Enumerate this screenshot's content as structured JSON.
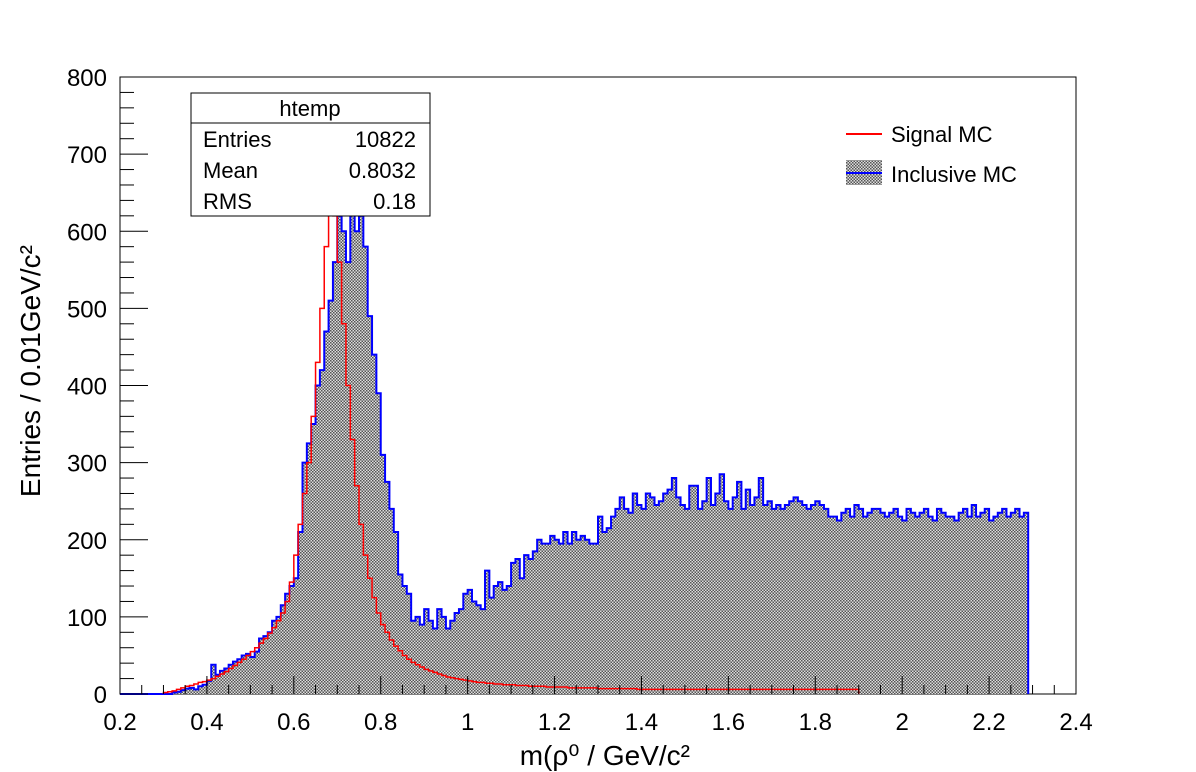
{
  "chart_data": {
    "type": "histogram",
    "xlabel": "m(ρ⁰ / GeV/c²",
    "ylabel": "Entries / 0.01GeV/c²",
    "xlim": [
      0.2,
      2.4
    ],
    "ylim": [
      0,
      800
    ],
    "bin_width": 0.01,
    "x_ticks": [
      "0.2",
      "0.4",
      "0.6",
      "0.8",
      "1",
      "1.2",
      "1.4",
      "1.6",
      "1.8",
      "2",
      "2.2",
      "2.4"
    ],
    "y_ticks": [
      "0",
      "100",
      "200",
      "300",
      "400",
      "500",
      "600",
      "700",
      "800"
    ],
    "stats_box": {
      "title": "htemp",
      "rows": [
        {
          "label": "Entries",
          "value": "10822"
        },
        {
          "label": "Mean",
          "value": "0.8032"
        },
        {
          "label": "RMS",
          "value": "0.18"
        }
      ]
    },
    "legend_position": "top-right",
    "series": [
      {
        "name": "Signal MC",
        "color": "#ff0000",
        "style": "line",
        "x_start": 0.3,
        "step": 0.01,
        "values": [
          2,
          3,
          4,
          6,
          8,
          10,
          11,
          13,
          15,
          16,
          18,
          20,
          23,
          26,
          29,
          33,
          37,
          41,
          45,
          50,
          55,
          60,
          66,
          72,
          79,
          86,
          95,
          105,
          120,
          145,
          180,
          220,
          260,
          300,
          360,
          430,
          500,
          580,
          640,
          620,
          560,
          480,
          400,
          330,
          270,
          220,
          180,
          150,
          125,
          105,
          90,
          80,
          70,
          62,
          56,
          50,
          45,
          41,
          38,
          35,
          32,
          30,
          28,
          26,
          24,
          22,
          21,
          20,
          19,
          18,
          17,
          16,
          15,
          15,
          14,
          14,
          13,
          13,
          12,
          12,
          12,
          11,
          11,
          11,
          10,
          10,
          10,
          10,
          9,
          9,
          9,
          9,
          9,
          8,
          8,
          8,
          8,
          8,
          8,
          8,
          7,
          7,
          7,
          7,
          7,
          7,
          7,
          7,
          7,
          6,
          6,
          6,
          6,
          6,
          6,
          6,
          6,
          6,
          6,
          6,
          6,
          6,
          6,
          6,
          6,
          6,
          6,
          6,
          6,
          6,
          6,
          6,
          6,
          6,
          6,
          6,
          6,
          6,
          6,
          6,
          6,
          6,
          6,
          6,
          6,
          6,
          6,
          6,
          6,
          6,
          6,
          6,
          6,
          6,
          6,
          6,
          6,
          6,
          6,
          6
        ]
      },
      {
        "name": "Inclusive MC",
        "color": "#0000ff",
        "fill": "hatched-grey",
        "style": "filled",
        "x_start": 0.2,
        "step": 0.01,
        "values": [
          0,
          0,
          0,
          0,
          0,
          0,
          0,
          0,
          0,
          0,
          0,
          0,
          2,
          3,
          5,
          7,
          8,
          6,
          10,
          12,
          17,
          38,
          25,
          30,
          33,
          38,
          42,
          45,
          50,
          52,
          48,
          55,
          72,
          75,
          80,
          95,
          100,
          115,
          130,
          140,
          150,
          210,
          300,
          325,
          350,
          400,
          420,
          470,
          510,
          560,
          620,
          600,
          560,
          640,
          600,
          620,
          580,
          490,
          440,
          390,
          310,
          275,
          240,
          210,
          155,
          140,
          130,
          95,
          100,
          90,
          110,
          95,
          85,
          110,
          100,
          85,
          95,
          105,
          110,
          130,
          135,
          120,
          115,
          110,
          160,
          125,
          140,
          145,
          135,
          140,
          170,
          175,
          150,
          180,
          175,
          185,
          200,
          195,
          195,
          205,
          200,
          195,
          210,
          195,
          210,
          200,
          205,
          200,
          195,
          195,
          230,
          210,
          215,
          230,
          240,
          255,
          240,
          235,
          260,
          245,
          240,
          260,
          255,
          245,
          250,
          260,
          265,
          280,
          255,
          245,
          240,
          270,
          270,
          240,
          250,
          280,
          245,
          260,
          285,
          250,
          240,
          255,
          275,
          240,
          265,
          245,
          255,
          280,
          245,
          250,
          240,
          245,
          240,
          245,
          250,
          255,
          250,
          245,
          240,
          245,
          250,
          245,
          240,
          230,
          230,
          225,
          235,
          240,
          230,
          245,
          240,
          230,
          235,
          240,
          240,
          235,
          230,
          235,
          240,
          230,
          225,
          240,
          235,
          230,
          235,
          240,
          230,
          225,
          240,
          235,
          230,
          230,
          225,
          235,
          240,
          230,
          245,
          230,
          235,
          240,
          225,
          230,
          235,
          240,
          230,
          235,
          240,
          230,
          235
        ]
      }
    ]
  }
}
